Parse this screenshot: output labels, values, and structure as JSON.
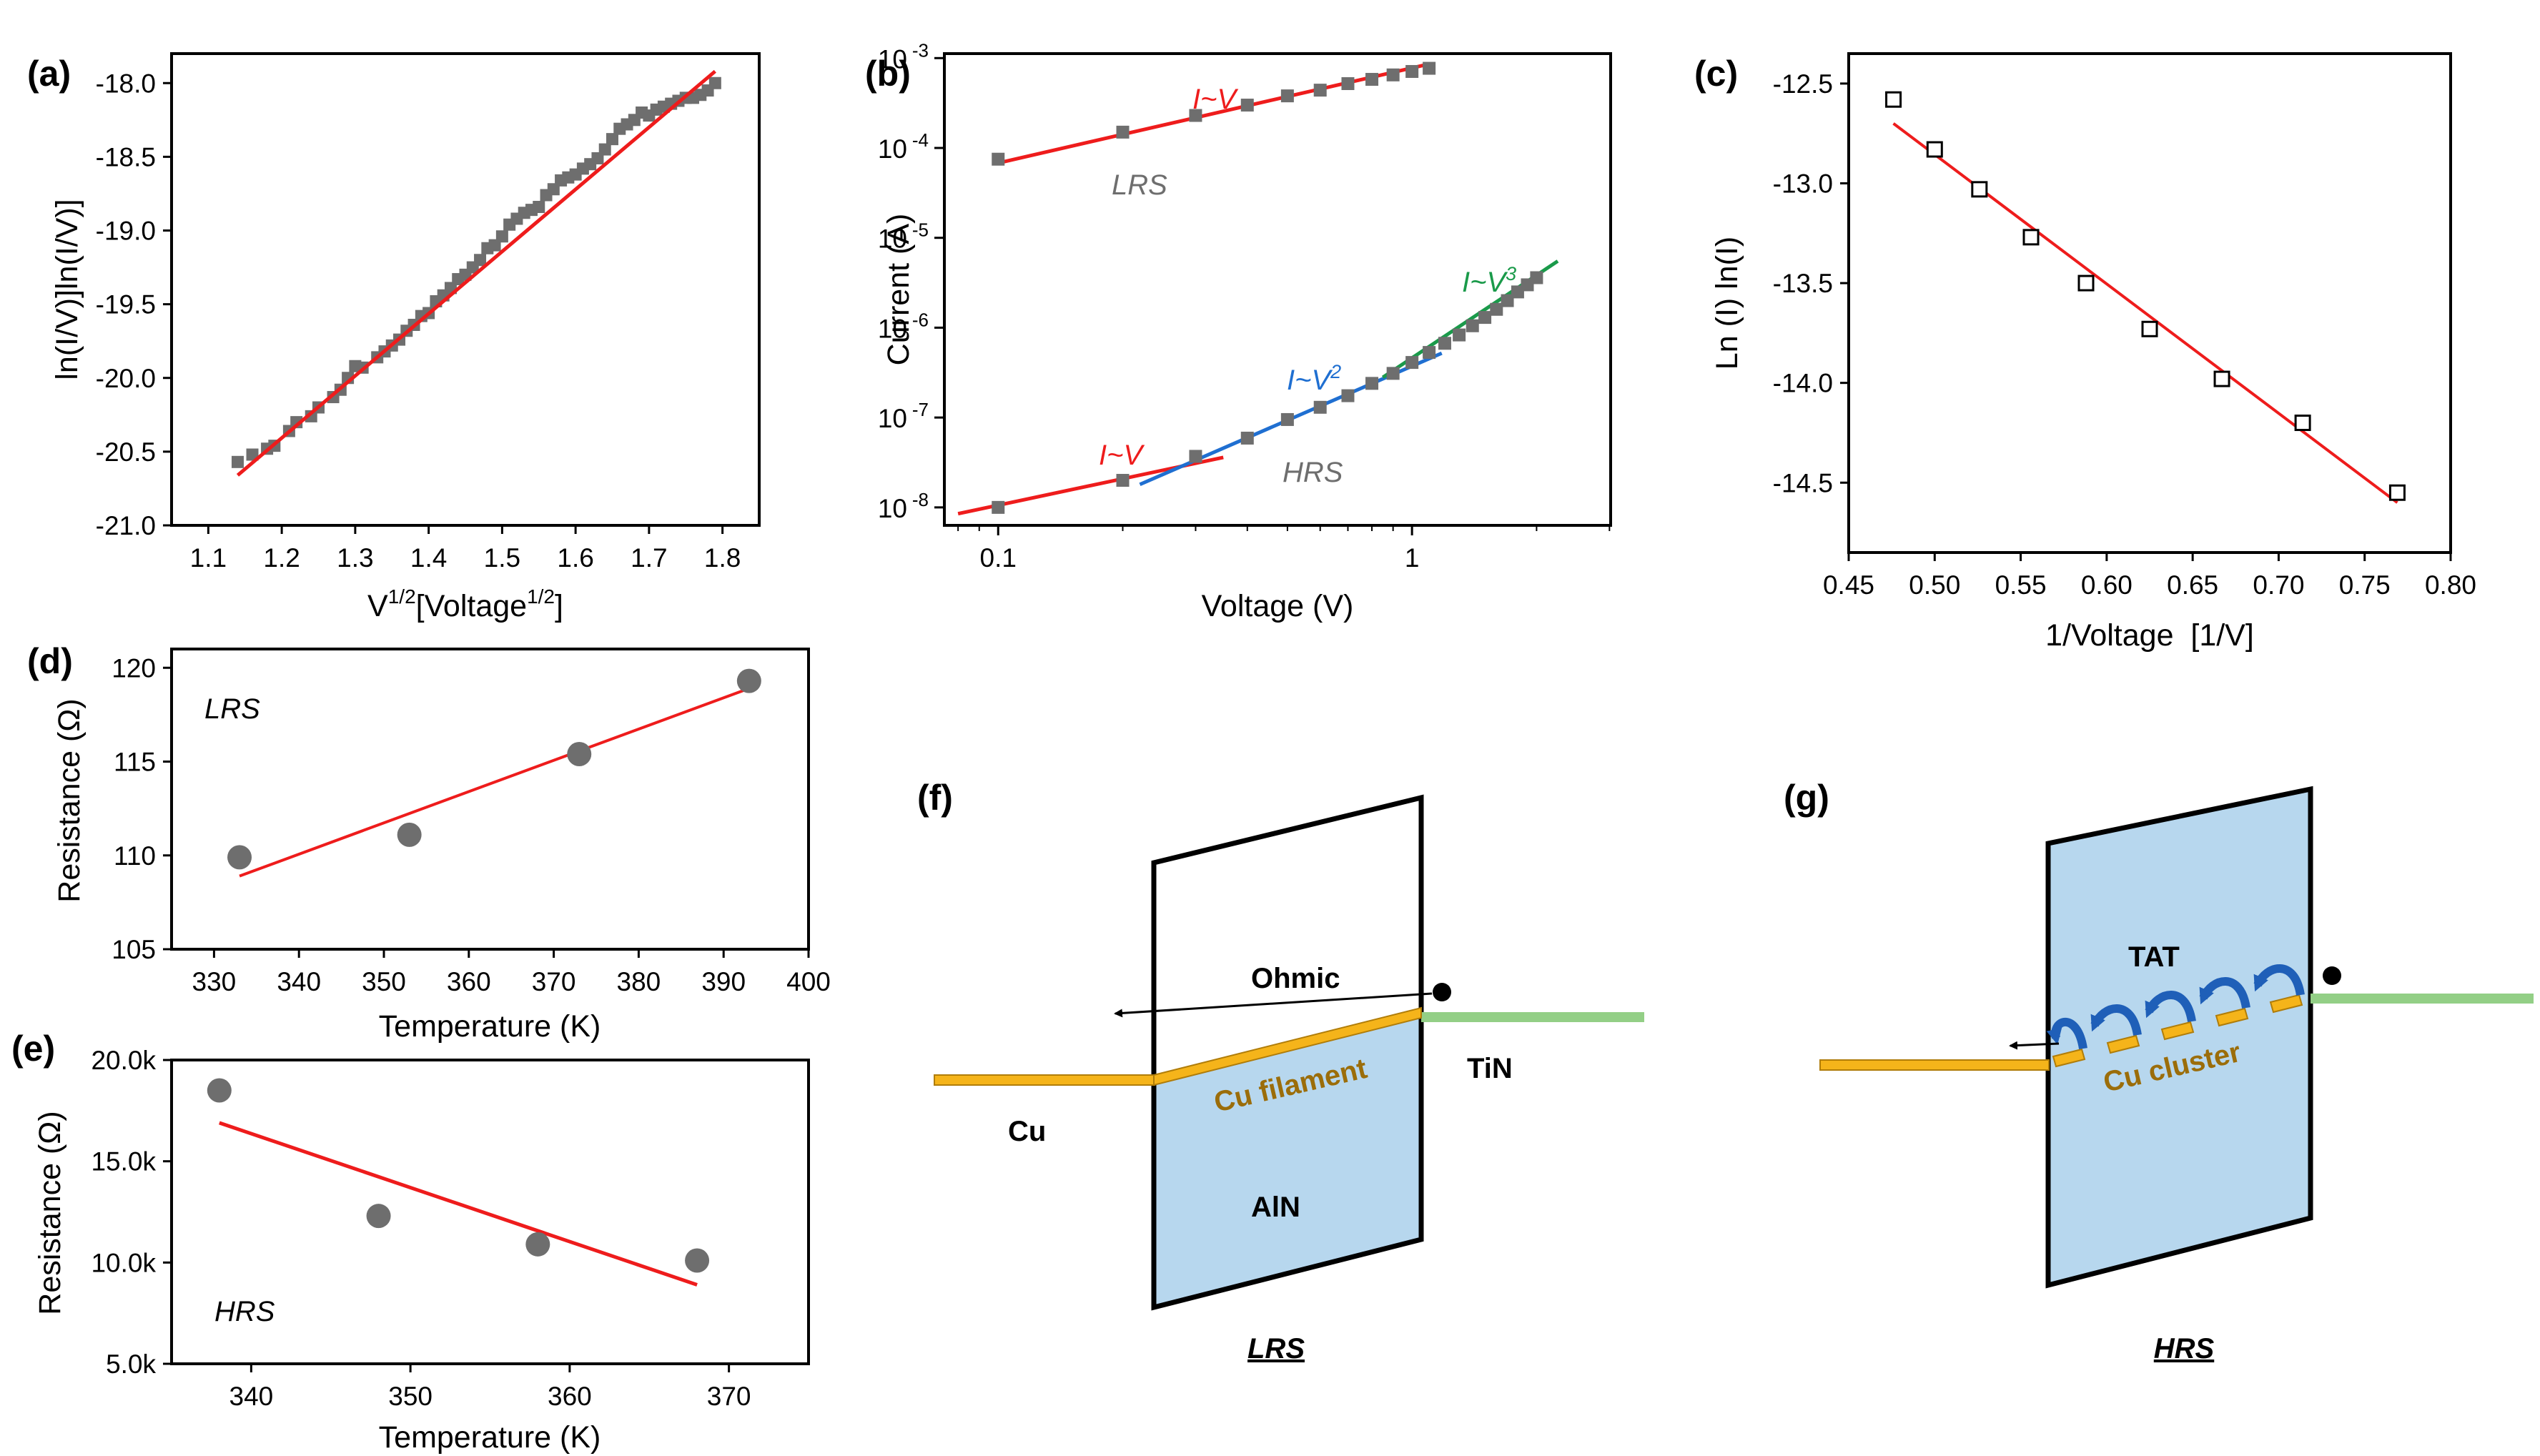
{
  "colors": {
    "fit": "#ee1c1c",
    "square_marker": "#6e6e6e",
    "circle_marker": "#6e6e6e",
    "fit_blue": "#1f6fd1",
    "fit_green": "#1a9a4a",
    "filament": "#f5b41a",
    "aln": "#b7d7ee",
    "tin": "#93cf86",
    "arrow_blue": "#1f5fb8",
    "cu_label": "#9b6d0a"
  },
  "chart_data": [
    {
      "panel": "(a)",
      "type": "scatter",
      "xlabel_main": "V",
      "xlabel_sup": "1/2",
      "xlabel_mid": "[Voltage",
      "xlabel_sup2": "1/2",
      "xlabel_end": "]",
      "ylabel": "ln(I/V)]ln(I/V)]",
      "xlim": [
        1.05,
        1.85
      ],
      "ylim": [
        -21.0,
        -17.8
      ],
      "xticks": [
        1.1,
        1.2,
        1.3,
        1.4,
        1.5,
        1.6,
        1.7,
        1.8
      ],
      "yticks": [
        -21.0,
        -20.5,
        -20.0,
        -19.5,
        -19.0,
        -18.5,
        -18.0
      ],
      "xtick_labels": [
        "1.1",
        "1.2",
        "1.3",
        "1.4",
        "1.5",
        "1.6",
        "1.7",
        "1.8"
      ],
      "ytick_labels": [
        "-21.0",
        "-20.5",
        "-20.0",
        "-19.5",
        "-19.0",
        "-18.5",
        "-18.0"
      ],
      "x": [
        1.14,
        1.16,
        1.18,
        1.19,
        1.21,
        1.22,
        1.24,
        1.25,
        1.27,
        1.28,
        1.29,
        1.3,
        1.31,
        1.33,
        1.34,
        1.35,
        1.36,
        1.37,
        1.38,
        1.39,
        1.4,
        1.41,
        1.42,
        1.43,
        1.44,
        1.45,
        1.46,
        1.47,
        1.48,
        1.49,
        1.5,
        1.51,
        1.52,
        1.53,
        1.54,
        1.55,
        1.56,
        1.57,
        1.58,
        1.59,
        1.6,
        1.61,
        1.62,
        1.63,
        1.64,
        1.65,
        1.66,
        1.67,
        1.68,
        1.69,
        1.7,
        1.71,
        1.72,
        1.73,
        1.74,
        1.75,
        1.76,
        1.77,
        1.78,
        1.79
      ],
      "y": [
        -20.57,
        -20.52,
        -20.48,
        -20.46,
        -20.36,
        -20.3,
        -20.26,
        -20.2,
        -20.13,
        -20.08,
        -20.0,
        -19.92,
        -19.93,
        -19.86,
        -19.82,
        -19.78,
        -19.74,
        -19.68,
        -19.64,
        -19.58,
        -19.56,
        -19.48,
        -19.44,
        -19.39,
        -19.33,
        -19.3,
        -19.25,
        -19.2,
        -19.12,
        -19.1,
        -19.04,
        -18.96,
        -18.92,
        -18.88,
        -18.86,
        -18.84,
        -18.76,
        -18.72,
        -18.66,
        -18.64,
        -18.62,
        -18.58,
        -18.55,
        -18.51,
        -18.45,
        -18.38,
        -18.31,
        -18.28,
        -18.25,
        -18.2,
        -18.22,
        -18.18,
        -18.16,
        -18.14,
        -18.12,
        -18.1,
        -18.1,
        -18.08,
        -18.05,
        -18.0
      ],
      "fit": {
        "x": [
          1.14,
          1.79
        ],
        "y": [
          -20.66,
          -17.92
        ]
      }
    },
    {
      "panel": "(b)",
      "type": "scatter",
      "scale": "log-log",
      "xlabel": "Voltage (V)",
      "ylabel": "Current (A)",
      "xlim_log10": [
        -1.13,
        0.48
      ],
      "ylim_log10": [
        -8.2,
        -2.95
      ],
      "xtick_labels": [
        "0.1",
        "1"
      ],
      "ytick_base": "10",
      "ytick_exps": [
        "-8",
        "-7",
        "-6",
        "-5",
        "-4",
        "-3"
      ],
      "series": [
        {
          "name": "LRS",
          "x": [
            0.1,
            0.2,
            0.3,
            0.4,
            0.5,
            0.6,
            0.7,
            0.8,
            0.9,
            1.0,
            1.1
          ],
          "y": [
            7.5e-05,
            0.00015,
            0.00023,
            0.0003,
            0.00038,
            0.00044,
            0.00052,
            0.00058,
            0.00065,
            0.00071,
            0.00077
          ]
        },
        {
          "name": "HRS",
          "x": [
            0.1,
            0.2,
            0.3,
            0.4,
            0.5,
            0.6,
            0.7,
            0.8,
            0.9,
            1.0,
            1.1,
            1.2,
            1.3,
            1.4,
            1.5,
            1.6,
            1.7,
            1.8,
            1.9,
            2.0
          ],
          "y": [
            1e-08,
            2e-08,
            3.7e-08,
            5.9e-08,
            9.5e-08,
            1.3e-07,
            1.75e-07,
            2.4e-07,
            3.1e-07,
            4.1e-07,
            5.3e-07,
            6.7e-07,
            8.3e-07,
            1.05e-06,
            1.3e-06,
            1.6e-06,
            2e-06,
            2.5e-06,
            3e-06,
            3.6e-06
          ]
        }
      ],
      "fits": [
        {
          "label": "I~V LRS",
          "color": "red",
          "x": [
            0.1,
            1.1
          ],
          "y": [
            6.8e-05,
            0.00086
          ]
        },
        {
          "label": "I~V HRS",
          "color": "red",
          "x": [
            0.08,
            0.35
          ],
          "y": [
            8.5e-09,
            3.6e-08
          ]
        },
        {
          "label": "I~V2",
          "color": "blue",
          "x": [
            0.22,
            1.18
          ],
          "y": [
            1.8e-08,
            5.2e-07
          ]
        },
        {
          "label": "I~V3",
          "color": "green",
          "x": [
            0.85,
            2.25
          ],
          "y": [
            2.8e-07,
            5.5e-06
          ]
        }
      ],
      "annotations": {
        "lrs_iv_main": "I~V",
        "lrs_label": "LRS",
        "hrs_iv_main": "I~V",
        "hrs_label": "HRS",
        "v2_main": "I~V",
        "v2_sup": "2",
        "v3_main": "I~V",
        "v3_sup": "3"
      }
    },
    {
      "panel": "(c)",
      "type": "scatter",
      "xlabel": "1/Voltage  [1/V]",
      "ylabel": "Ln (I) ln(I)",
      "xlim": [
        0.45,
        0.8
      ],
      "ylim": [
        -14.85,
        -12.35
      ],
      "xticks": [
        0.45,
        0.5,
        0.55,
        0.6,
        0.65,
        0.7,
        0.75,
        0.8
      ],
      "yticks": [
        -14.5,
        -14.0,
        -13.5,
        -13.0,
        -12.5
      ],
      "xtick_labels": [
        "0.45",
        "0.50",
        "0.55",
        "0.60",
        "0.65",
        "0.70",
        "0.75",
        "0.80"
      ],
      "ytick_labels": [
        "-14.5",
        "-14.0",
        "-13.5",
        "-13.0",
        "-12.5"
      ],
      "x": [
        0.476,
        0.5,
        0.526,
        0.556,
        0.588,
        0.625,
        0.667,
        0.714,
        0.769
      ],
      "y": [
        -12.58,
        -12.83,
        -13.03,
        -13.27,
        -13.5,
        -13.73,
        -13.98,
        -14.2,
        -14.55
      ],
      "fit": {
        "x": [
          0.476,
          0.769
        ],
        "y": [
          -12.7,
          -14.6
        ]
      }
    },
    {
      "panel": "(d)",
      "type": "scatter",
      "xlabel": "Temperature (K)",
      "ylabel": "Resistance (Ω)",
      "annotation": "LRS",
      "xlim": [
        325,
        400
      ],
      "ylim": [
        105,
        121
      ],
      "xticks": [
        330,
        340,
        350,
        360,
        370,
        380,
        390,
        400
      ],
      "yticks": [
        105,
        110,
        115,
        120
      ],
      "xtick_labels": [
        "330",
        "340",
        "350",
        "360",
        "370",
        "380",
        "390",
        "400"
      ],
      "ytick_labels": [
        "105",
        "110",
        "115",
        "120"
      ],
      "x": [
        333,
        353,
        373,
        393
      ],
      "y": [
        109.9,
        111.1,
        115.4,
        119.3
      ],
      "fit": {
        "x": [
          333,
          393
        ],
        "y": [
          108.9,
          118.9
        ]
      }
    },
    {
      "panel": "(e)",
      "type": "scatter",
      "xlabel": "Temperature (K)",
      "ylabel": "Resistance (Ω)",
      "annotation": "HRS",
      "xlim": [
        335,
        375
      ],
      "ylim": [
        5000,
        20000
      ],
      "xticks": [
        340,
        350,
        360,
        370
      ],
      "yticks": [
        5000,
        10000,
        15000,
        20000
      ],
      "xtick_labels": [
        "340",
        "350",
        "360",
        "370"
      ],
      "ytick_labels": [
        "5.0k",
        "10.0k",
        "15.0k",
        "20.0k"
      ],
      "x": [
        338,
        348,
        358,
        368
      ],
      "y": [
        18500,
        12300,
        10900,
        10100
      ],
      "fit": {
        "x": [
          338,
          368
        ],
        "y": [
          16900,
          8900
        ]
      }
    }
  ],
  "panels": {
    "a": "(a)",
    "b": "(b)",
    "c": "(c)",
    "d": "(d)",
    "e": "(e)",
    "f": "(f)",
    "g": "(g)"
  },
  "diagram_f": {
    "ohmic": "Ohmic",
    "filament": "Cu filament",
    "cu": "Cu",
    "tin": "TiN",
    "aln": "AlN",
    "state": "LRS"
  },
  "diagram_g": {
    "tat": "TAT",
    "cluster": "Cu cluster",
    "state": "HRS"
  }
}
